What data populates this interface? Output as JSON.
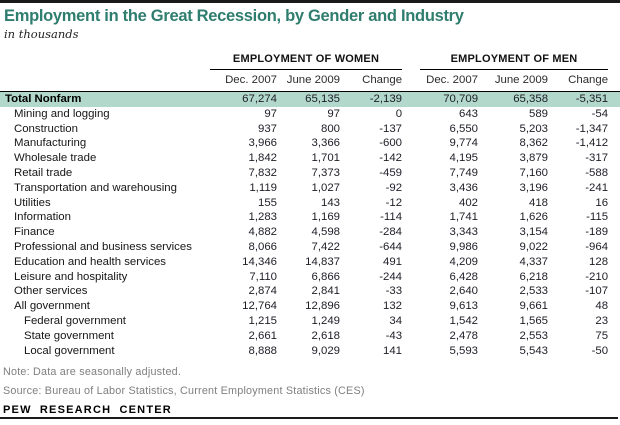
{
  "header": {
    "title": "Employment in the Great Recession, by Gender and Industry",
    "subtitle": "in thousands"
  },
  "chart_data": {
    "type": "table",
    "title": "Employment in the Great Recession, by Gender and Industry",
    "units": "in thousands",
    "column_groups": [
      "EMPLOYMENT OF WOMEN",
      "EMPLOYMENT OF MEN"
    ],
    "columns": [
      "Dec. 2007",
      "June 2009",
      "Change"
    ],
    "rows": [
      {
        "label": "Total Nonfarm",
        "indent": 0,
        "emphasis": true,
        "women": [
          "67,274",
          "65,135",
          "-2,139"
        ],
        "men": [
          "70,709",
          "65,358",
          "-5,351"
        ]
      },
      {
        "label": "Mining and logging",
        "indent": 1,
        "emphasis": false,
        "women": [
          "97",
          "97",
          "0"
        ],
        "men": [
          "643",
          "589",
          "-54"
        ]
      },
      {
        "label": "Construction",
        "indent": 1,
        "emphasis": false,
        "women": [
          "937",
          "800",
          "-137"
        ],
        "men": [
          "6,550",
          "5,203",
          "-1,347"
        ]
      },
      {
        "label": "Manufacturing",
        "indent": 1,
        "emphasis": false,
        "women": [
          "3,966",
          "3,366",
          "-600"
        ],
        "men": [
          "9,774",
          "8,362",
          "-1,412"
        ]
      },
      {
        "label": "Wholesale trade",
        "indent": 1,
        "emphasis": false,
        "women": [
          "1,842",
          "1,701",
          "-142"
        ],
        "men": [
          "4,195",
          "3,879",
          "-317"
        ]
      },
      {
        "label": "Retail trade",
        "indent": 1,
        "emphasis": false,
        "women": [
          "7,832",
          "7,373",
          "-459"
        ],
        "men": [
          "7,749",
          "7,160",
          "-588"
        ]
      },
      {
        "label": "Transportation and warehousing",
        "indent": 1,
        "emphasis": false,
        "women": [
          "1,119",
          "1,027",
          "-92"
        ],
        "men": [
          "3,436",
          "3,196",
          "-241"
        ]
      },
      {
        "label": "Utilities",
        "indent": 1,
        "emphasis": false,
        "women": [
          "155",
          "143",
          "-12"
        ],
        "men": [
          "402",
          "418",
          "16"
        ]
      },
      {
        "label": "Information",
        "indent": 1,
        "emphasis": false,
        "women": [
          "1,283",
          "1,169",
          "-114"
        ],
        "men": [
          "1,741",
          "1,626",
          "-115"
        ]
      },
      {
        "label": "Finance",
        "indent": 1,
        "emphasis": false,
        "women": [
          "4,882",
          "4,598",
          "-284"
        ],
        "men": [
          "3,343",
          "3,154",
          "-189"
        ]
      },
      {
        "label": "Professional and business services",
        "indent": 1,
        "emphasis": false,
        "women": [
          "8,066",
          "7,422",
          "-644"
        ],
        "men": [
          "9,986",
          "9,022",
          "-964"
        ]
      },
      {
        "label": "Education and health services",
        "indent": 1,
        "emphasis": false,
        "women": [
          "14,346",
          "14,837",
          "491"
        ],
        "men": [
          "4,209",
          "4,337",
          "128"
        ]
      },
      {
        "label": "Leisure and hospitality",
        "indent": 1,
        "emphasis": false,
        "women": [
          "7,110",
          "6,866",
          "-244"
        ],
        "men": [
          "6,428",
          "6,218",
          "-210"
        ]
      },
      {
        "label": "Other services",
        "indent": 1,
        "emphasis": false,
        "women": [
          "2,874",
          "2,841",
          "-33"
        ],
        "men": [
          "2,640",
          "2,533",
          "-107"
        ]
      },
      {
        "label": "All government",
        "indent": 1,
        "emphasis": false,
        "women": [
          "12,764",
          "12,896",
          "132"
        ],
        "men": [
          "9,613",
          "9,661",
          "48"
        ]
      },
      {
        "label": "Federal government",
        "indent": 2,
        "emphasis": false,
        "women": [
          "1,215",
          "1,249",
          "34"
        ],
        "men": [
          "1,542",
          "1,565",
          "23"
        ]
      },
      {
        "label": "State government",
        "indent": 2,
        "emphasis": false,
        "women": [
          "2,661",
          "2,618",
          "-43"
        ],
        "men": [
          "2,478",
          "2,553",
          "75"
        ]
      },
      {
        "label": "Local government",
        "indent": 2,
        "emphasis": false,
        "women": [
          "8,888",
          "9,029",
          "141"
        ],
        "men": [
          "5,593",
          "5,543",
          "-50"
        ]
      }
    ]
  },
  "footer": {
    "note": "Note: Data are seasonally adjusted.",
    "source": "Source: Bureau of Labor Statistics, Current Employment Statistics (CES)",
    "branding": "PEW RESEARCH  CENTER"
  },
  "colors": {
    "accent_teal": "#2e7d6e",
    "highlight_row_bg": "#b2d8cb",
    "muted_text": "#7f7f7f",
    "rule": "#1a1a1a"
  }
}
